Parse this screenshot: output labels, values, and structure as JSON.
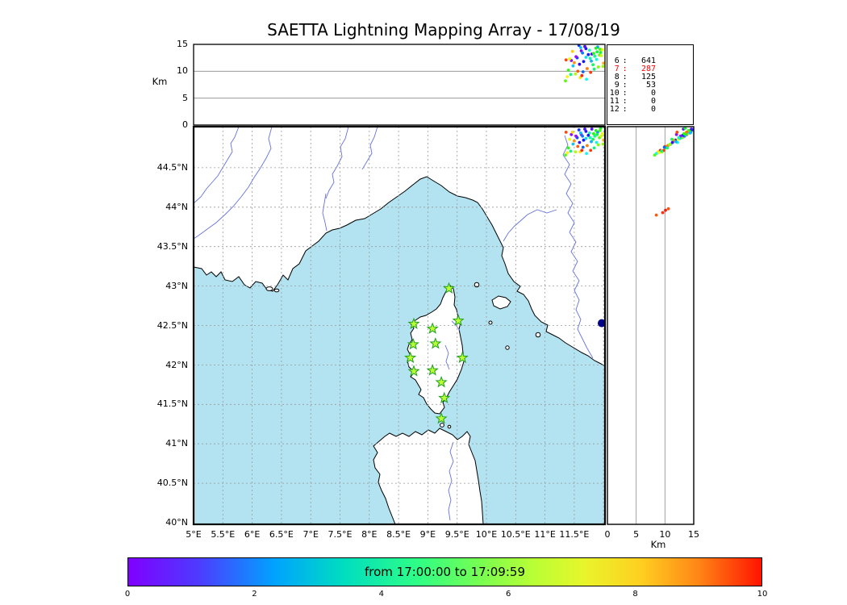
{
  "title": "SAETTA Lightning Mapping Array - 17/08/19",
  "top_panel": {
    "ylabel": "Km",
    "yticks": [
      "15",
      "10",
      "5",
      "0"
    ]
  },
  "stats_panel": {
    "separator": ":",
    "highlight_color": "#ff0000",
    "rows": [
      {
        "level": "6",
        "count": "641",
        "highlight": false
      },
      {
        "level": "7",
        "count": "287",
        "highlight": true
      },
      {
        "level": "8",
        "count": "125",
        "highlight": false
      },
      {
        "level": "9",
        "count": "53",
        "highlight": false
      },
      {
        "level": "10",
        "count": "0",
        "highlight": false
      },
      {
        "level": "11",
        "count": "0",
        "highlight": false
      },
      {
        "level": "12",
        "count": "0",
        "highlight": false
      }
    ]
  },
  "map_panel": {
    "sea_color": "#b3e3f1",
    "land_color": "#ffffff",
    "lat_ticks": [
      "44.5°N",
      "44°N",
      "43.5°N",
      "43°N",
      "42.5°N",
      "42°N",
      "41.5°N",
      "41°N",
      "40.5°N",
      "40°N"
    ],
    "lon_ticks": [
      "5°E",
      "5.5°E",
      "6°E",
      "6.5°E",
      "7°E",
      "7.5°E",
      "8°E",
      "8.5°E",
      "9°E",
      "9.5°E",
      "10°E",
      "10.5°E",
      "11°E",
      "11.5°E"
    ]
  },
  "right_panel": {
    "xlabel": "Km",
    "xticks": [
      "0",
      "5",
      "10",
      "15"
    ]
  },
  "colorbar": {
    "label": "from 17:00:00 to 17:09:59",
    "ticks": [
      "0",
      "2",
      "4",
      "6",
      "8",
      "10"
    ]
  },
  "chart_data": {
    "type": "scatter",
    "title": "SAETTA Lightning Mapping Array - 17/08/19",
    "map_extent": {
      "lon": [
        5.0,
        12.02
      ],
      "lat": [
        40.0,
        45.02
      ]
    },
    "altitude_axis_km": {
      "min": 0,
      "max": 15,
      "gridlines": [
        5,
        10
      ]
    },
    "time_window": {
      "start": "17:00:00",
      "end": "17:09:59"
    },
    "colorbar_minutes": [
      0,
      10
    ],
    "source_counts_by_min_stations": [
      [
        "6",
        641
      ],
      [
        "7",
        287
      ],
      [
        "8",
        125
      ],
      [
        "9",
        53
      ],
      [
        "10",
        0
      ],
      [
        "11",
        0
      ],
      [
        "12",
        0
      ]
    ],
    "stations_lonlat": [
      [
        9.36,
        42.97
      ],
      [
        8.76,
        42.52
      ],
      [
        9.08,
        42.46
      ],
      [
        9.52,
        42.56
      ],
      [
        8.75,
        42.26
      ],
      [
        9.13,
        42.27
      ],
      [
        8.7,
        42.09
      ],
      [
        9.59,
        42.09
      ],
      [
        8.76,
        41.92
      ],
      [
        9.08,
        41.93
      ],
      [
        9.23,
        41.78
      ],
      [
        9.28,
        41.58
      ],
      [
        9.23,
        41.32
      ]
    ],
    "marker_lonlat": [
      11.97,
      42.53
    ],
    "lightning_points": [
      [
        11.62,
        44.92,
        13.8,
        0.5
      ],
      [
        11.7,
        44.96,
        14.2,
        1.2
      ],
      [
        11.55,
        44.88,
        12.5,
        2.0
      ],
      [
        11.48,
        44.8,
        11.0,
        3.1
      ],
      [
        11.8,
        44.99,
        13.2,
        0.8
      ],
      [
        11.85,
        44.9,
        12.8,
        4.5
      ],
      [
        11.9,
        44.95,
        14.5,
        2.7
      ],
      [
        11.95,
        45.0,
        13.5,
        5.5
      ],
      [
        11.4,
        44.75,
        10.2,
        6.0
      ],
      [
        11.52,
        44.7,
        9.5,
        7.2
      ],
      [
        11.6,
        44.7,
        8.8,
        8.0
      ],
      [
        11.66,
        44.85,
        11.8,
        1.5
      ],
      [
        11.72,
        44.78,
        10.5,
        9.0
      ],
      [
        11.78,
        44.72,
        9.8,
        9.6
      ],
      [
        11.88,
        44.82,
        12.2,
        3.8
      ],
      [
        11.93,
        44.88,
        13.0,
        6.5
      ],
      [
        11.98,
        44.93,
        14.0,
        7.8
      ],
      [
        12.0,
        44.85,
        11.5,
        8.5
      ],
      [
        11.45,
        44.92,
        12.0,
        0.3
      ],
      [
        11.58,
        44.98,
        14.8,
        1.8
      ],
      [
        11.64,
        44.9,
        13.4,
        2.4
      ],
      [
        11.7,
        44.87,
        12.6,
        3.3
      ],
      [
        11.76,
        44.94,
        13.9,
        4.1
      ],
      [
        11.82,
        44.86,
        11.2,
        5.0
      ],
      [
        11.87,
        44.97,
        14.3,
        5.8
      ],
      [
        11.91,
        44.79,
        10.8,
        6.8
      ],
      [
        11.96,
        44.9,
        12.9,
        7.5
      ],
      [
        11.5,
        44.84,
        11.6,
        8.8
      ],
      [
        11.56,
        44.77,
        10.0,
        9.3
      ],
      [
        11.63,
        44.72,
        9.2,
        9.8
      ],
      [
        11.68,
        44.99,
        14.6,
        0.9
      ],
      [
        11.74,
        44.91,
        13.1,
        1.6
      ],
      [
        11.79,
        44.83,
        11.9,
        2.9
      ],
      [
        11.84,
        44.75,
        10.4,
        4.8
      ],
      [
        11.89,
        44.92,
        13.6,
        5.3
      ],
      [
        11.94,
        44.97,
        14.1,
        6.2
      ],
      [
        11.99,
        44.8,
        10.9,
        7.0
      ],
      [
        11.42,
        44.86,
        12.3,
        7.7
      ],
      [
        11.47,
        44.95,
        13.7,
        8.2
      ],
      [
        11.53,
        44.9,
        12.7,
        0.2
      ],
      [
        11.59,
        44.82,
        11.3,
        1.1
      ],
      [
        11.65,
        44.76,
        9.9,
        2.2
      ],
      [
        11.71,
        44.68,
        8.5,
        3.6
      ],
      [
        11.77,
        44.88,
        12.4,
        4.3
      ],
      [
        11.83,
        44.93,
        13.3,
        5.9
      ],
      [
        11.35,
        44.66,
        8.2,
        6.4
      ],
      [
        11.38,
        44.69,
        9.0,
        7.9
      ],
      [
        12.02,
        44.95,
        13.8,
        9.1
      ],
      [
        11.36,
        44.95,
        12.1,
        9.5
      ],
      [
        11.61,
        44.94,
        14.4,
        3.0
      ],
      [
        11.44,
        44.71,
        9.4,
        4.7
      ],
      [
        12.3,
        43.98,
        10.6,
        9.4
      ],
      [
        12.36,
        43.93,
        9.6,
        9.7
      ],
      [
        12.31,
        43.9,
        8.5,
        9.3
      ],
      [
        12.42,
        43.96,
        10.1,
        9.9
      ]
    ]
  }
}
